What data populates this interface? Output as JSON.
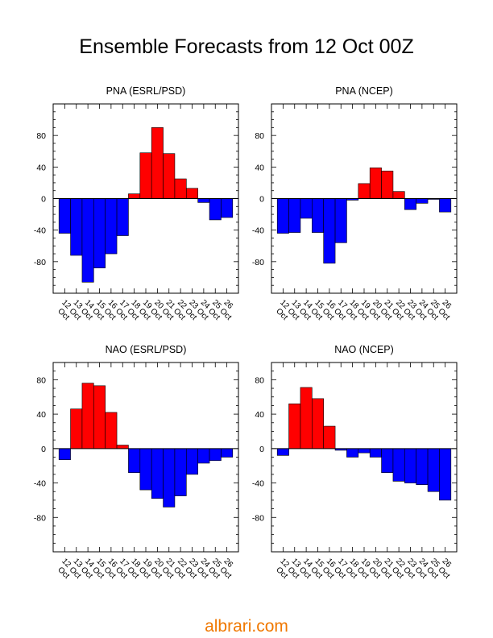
{
  "title": "Ensemble Forecasts from 12 Oct 00Z",
  "watermark": "albrari.com",
  "colors": {
    "positive": "#ff0000",
    "negative": "#0000ff",
    "outline": "#000000",
    "watermark": "#f07800"
  },
  "chart_data": [
    {
      "type": "bar",
      "title": "PNA (ESRL/PSD)",
      "categories": [
        "12 Oct",
        "13 Oct",
        "14 Oct",
        "15 Oct",
        "16 Oct",
        "17 Oct",
        "18 Oct",
        "19 Oct",
        "20 Oct",
        "21 Oct",
        "22 Oct",
        "23 Oct",
        "24 Oct",
        "25 Oct",
        "26 Oct"
      ],
      "values": [
        -44,
        -72,
        -106,
        -88,
        -70,
        -47,
        6,
        58,
        90,
        57,
        25,
        13,
        -5,
        -27,
        -24
      ],
      "ylim": [
        -120,
        120
      ],
      "yticks": [
        -80,
        -40,
        0,
        40,
        80
      ],
      "ytick_labels": [
        "-80",
        "-40",
        "0",
        "40",
        "80"
      ],
      "xlabel": "",
      "ylabel": ""
    },
    {
      "type": "bar",
      "title": "PNA (NCEP)",
      "categories": [
        "12 Oct",
        "13 Oct",
        "14 Oct",
        "15 Oct",
        "16 Oct",
        "17 Oct",
        "18 Oct",
        "19 Oct",
        "20 Oct",
        "21 Oct",
        "22 Oct",
        "23 Oct",
        "24 Oct",
        "25 Oct",
        "26 Oct"
      ],
      "values": [
        -44,
        -43,
        -25,
        -43,
        -82,
        -56,
        -2,
        19,
        39,
        35,
        9,
        -14,
        -6,
        -1,
        -17
      ],
      "ylim": [
        -120,
        120
      ],
      "yticks": [
        -80,
        -40,
        0,
        40,
        80
      ],
      "ytick_labels": [
        "-80",
        "-40",
        "0",
        "40",
        "80"
      ],
      "xlabel": "",
      "ylabel": ""
    },
    {
      "type": "bar",
      "title": "NAO (ESRL/PSD)",
      "categories": [
        "12 Oct",
        "13 Oct",
        "14 Oct",
        "15 Oct",
        "16 Oct",
        "17 Oct",
        "18 Oct",
        "19 Oct",
        "20 Oct",
        "21 Oct",
        "22 Oct",
        "23 Oct",
        "24 Oct",
        "25 Oct",
        "26 Oct"
      ],
      "values": [
        -13,
        46,
        76,
        73,
        42,
        4,
        -28,
        -48,
        -58,
        -68,
        -55,
        -30,
        -17,
        -14,
        -10
      ],
      "ylim": [
        -120,
        100
      ],
      "yticks": [
        -80,
        -40,
        0,
        40,
        80
      ],
      "ytick_labels": [
        "-80",
        "-40",
        "0",
        "40",
        "80"
      ],
      "xlabel": "",
      "ylabel": ""
    },
    {
      "type": "bar",
      "title": "NAO (NCEP)",
      "categories": [
        "12 Oct",
        "13 Oct",
        "14 Oct",
        "15 Oct",
        "16 Oct",
        "17 Oct",
        "18 Oct",
        "19 Oct",
        "20 Oct",
        "21 Oct",
        "22 Oct",
        "23 Oct",
        "24 Oct",
        "25 Oct",
        "26 Oct"
      ],
      "values": [
        -8,
        52,
        71,
        58,
        26,
        -2,
        -10,
        -5,
        -10,
        -28,
        -38,
        -40,
        -42,
        -50,
        -60
      ],
      "ylim": [
        -120,
        100
      ],
      "yticks": [
        -80,
        -40,
        0,
        40,
        80
      ],
      "ytick_labels": [
        "-80",
        "-40",
        "0",
        "40",
        "80"
      ],
      "xlabel": "",
      "ylabel": ""
    }
  ]
}
